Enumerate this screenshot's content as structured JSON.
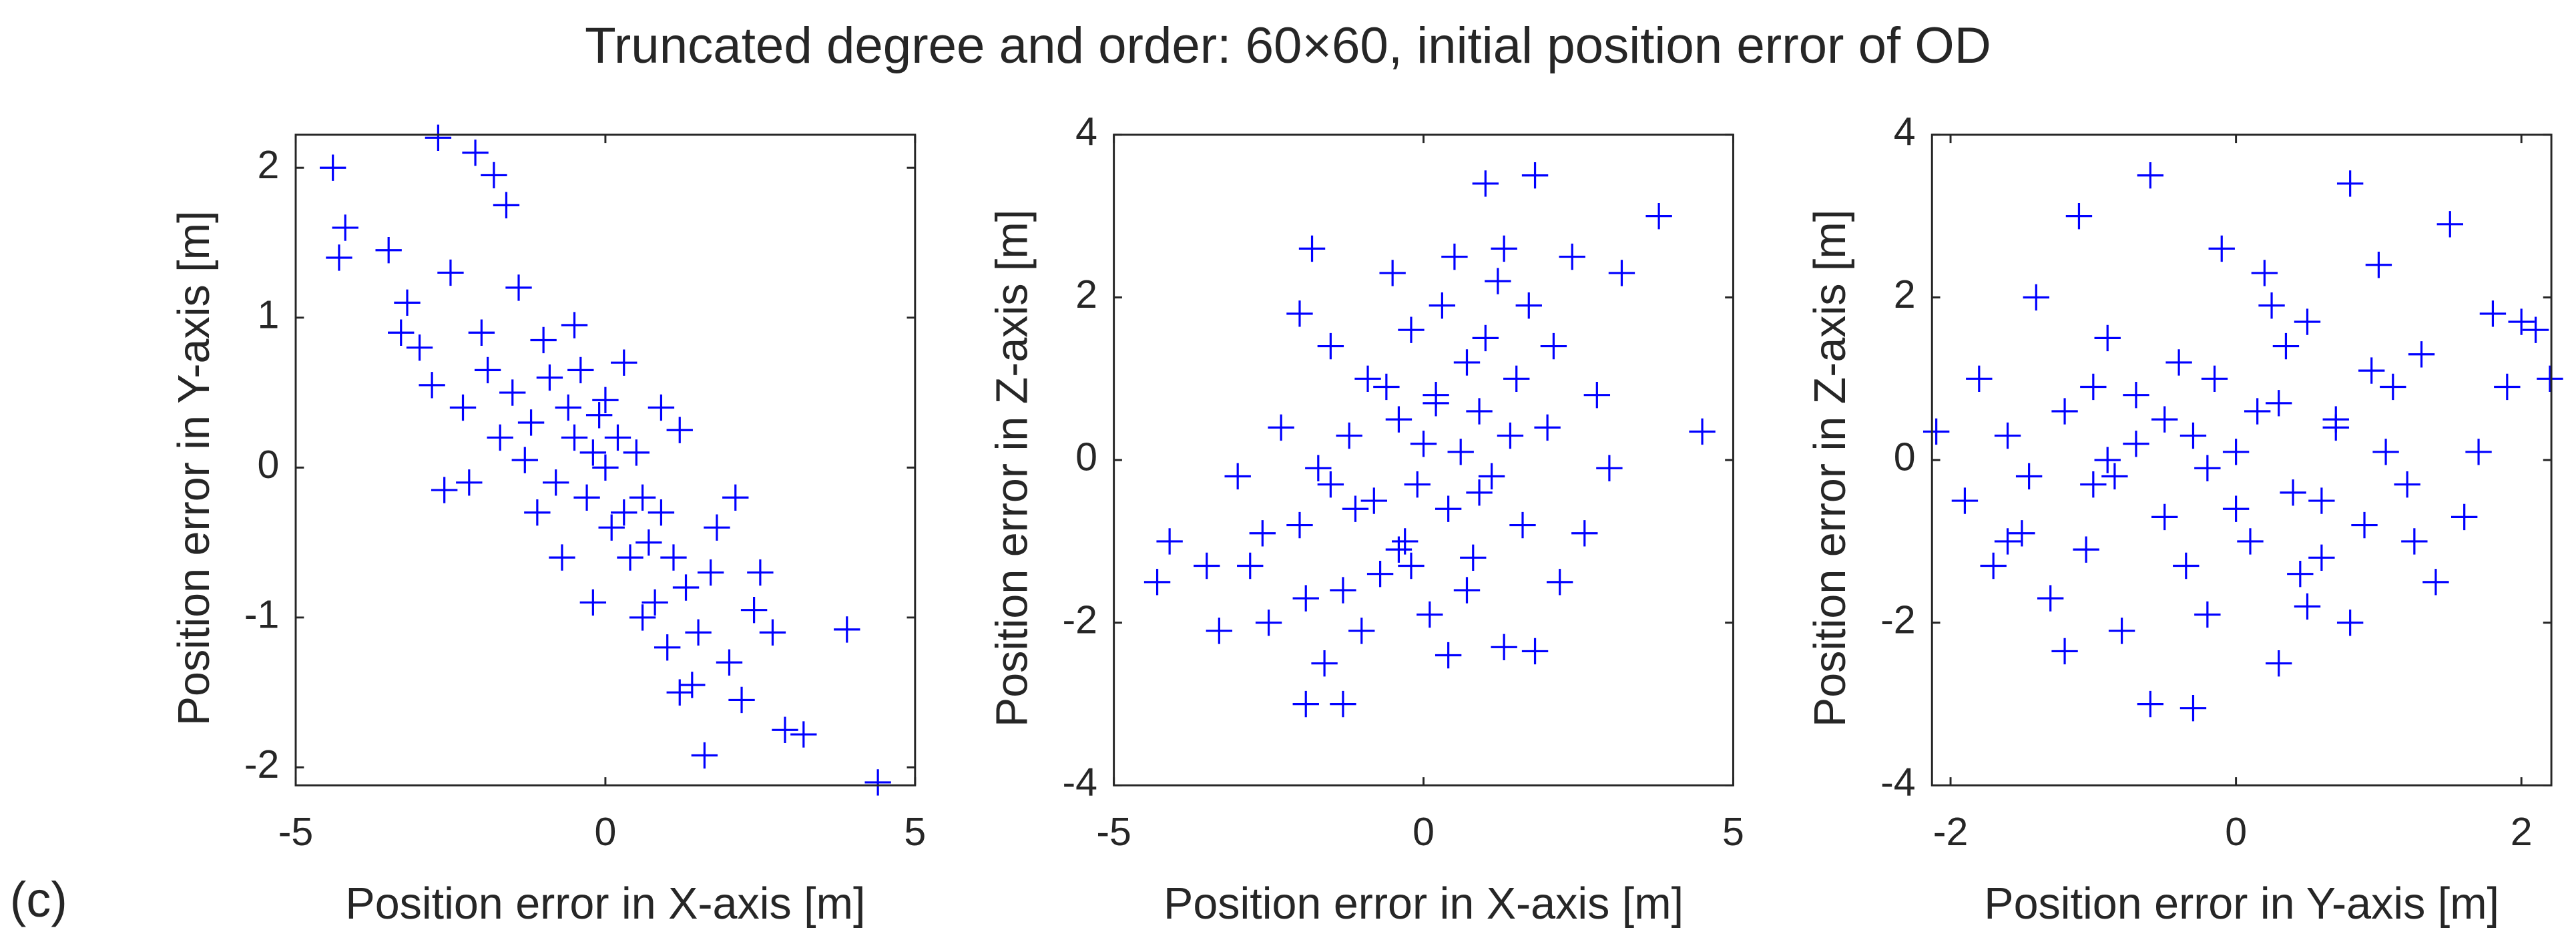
{
  "title": "Truncated degree and order: 60×60, initial position error of OD",
  "panel_label": "(c)",
  "chart_data": [
    {
      "type": "scatter",
      "color": "#0000ff",
      "marker": "+",
      "xlabel": "Position error in X-axis [m]",
      "ylabel": "Position error in Y-axis [m]",
      "xlim": [
        -5,
        5
      ],
      "ylim": [
        -2.12,
        2.22
      ],
      "xticks": [
        -5,
        0,
        5
      ],
      "yticks": [
        -2,
        -1,
        0,
        1,
        2
      ],
      "x": [
        -4.4,
        -4.3,
        -4.2,
        -2.7,
        -3.5,
        -3.2,
        -3.0,
        -2.8,
        -2.5,
        -2.3,
        -2.1,
        -2.0,
        -1.8,
        -1.6,
        -1.5,
        -1.4,
        -1.2,
        -1.0,
        -0.9,
        -0.8,
        -0.6,
        -0.5,
        -0.4,
        -0.3,
        -0.2,
        -0.1,
        0,
        0.1,
        0.2,
        0.3,
        0.4,
        0.5,
        0.6,
        0.7,
        0.8,
        0.9,
        1.0,
        1.1,
        1.2,
        1.3,
        1.5,
        1.6,
        1.8,
        2.0,
        2.2,
        2.5,
        2.7,
        2.9,
        3.2,
        3.9,
        4.4,
        -1.7,
        -2.2,
        -3.3,
        -0.7,
        0.3,
        1.4,
        -1.1,
        0.9,
        2.4,
        -2.6,
        -1.9,
        -0.2,
        0.6,
        1.7,
        -1.3,
        0.0,
        -0.5,
        1.2,
        2.1
      ],
      "values": [
        2.0,
        1.4,
        1.6,
        2.2,
        1.45,
        1.1,
        0.8,
        0.55,
        1.3,
        0.4,
        2.1,
        0.9,
        1.95,
        1.75,
        0.5,
        1.2,
        0.3,
        0.85,
        0.6,
        -0.1,
        0.4,
        0.2,
        0.65,
        -0.2,
        0.1,
        0.35,
        0.0,
        -0.4,
        0.2,
        -0.3,
        -0.6,
        0.1,
        -0.2,
        -0.5,
        -0.9,
        -0.3,
        -1.2,
        -0.6,
        -1.5,
        -0.8,
        -1.1,
        -1.92,
        -0.4,
        -1.3,
        -1.55,
        -0.7,
        -1.1,
        -1.75,
        -1.78,
        -1.08,
        -2.1,
        0.2,
        -0.1,
        0.9,
        -0.6,
        0.7,
        -1.45,
        -0.3,
        0.4,
        -0.95,
        -0.15,
        0.65,
        -0.9,
        -1.0,
        -0.7,
        0.05,
        0.45,
        0.95,
        0.25,
        -0.2
      ]
    },
    {
      "type": "scatter",
      "color": "#0000ff",
      "marker": "+",
      "xlabel": "Position error in X-axis [m]",
      "ylabel": "Position error in Z-axis [m]",
      "xlim": [
        -5,
        5
      ],
      "ylim": [
        -4,
        4
      ],
      "xticks": [
        -5,
        0,
        5
      ],
      "yticks": [
        -4,
        -2,
        0,
        2,
        4
      ],
      "x": [
        -4.3,
        -4.1,
        -3.3,
        -3.0,
        -2.8,
        -2.5,
        -2.3,
        -2.0,
        -1.9,
        -1.8,
        -1.6,
        -1.5,
        -1.3,
        -1.2,
        -1.0,
        -0.9,
        -0.8,
        -0.7,
        -0.5,
        -0.4,
        -0.3,
        -0.2,
        -0.1,
        0,
        0.1,
        0.2,
        0.3,
        0.4,
        0.5,
        0.6,
        0.7,
        0.8,
        0.9,
        1.0,
        1.1,
        1.2,
        1.3,
        1.5,
        1.6,
        1.8,
        2.0,
        2.2,
        2.4,
        2.6,
        3.0,
        3.2,
        3.8,
        4.5,
        1.8,
        1.0,
        -1.3,
        -1.9,
        -2.0,
        -1.1,
        0.4,
        -0.6,
        1.4,
        2.1,
        -2.6,
        0.7,
        -0.2,
        1.7,
        -3.5,
        -1.5,
        0.2,
        0.9,
        -0.4,
        2.8,
        -1.7,
        1.3
      ],
      "values": [
        -1.5,
        -1.0,
        -2.1,
        -0.2,
        -1.3,
        -2.0,
        0.4,
        -0.8,
        -3.0,
        2.6,
        -2.5,
        1.4,
        -3.0,
        0.3,
        -2.1,
        1.0,
        -0.5,
        -1.4,
        2.3,
        0.5,
        -1.0,
        1.6,
        -0.3,
        0.2,
        -1.9,
        0.8,
        1.9,
        -0.6,
        2.5,
        0.1,
        1.2,
        -1.2,
        0.6,
        3.4,
        -0.2,
        2.2,
        -2.3,
        1.0,
        -0.8,
        3.5,
        0.4,
        -1.5,
        2.5,
        -0.9,
        -0.1,
        2.3,
        3.0,
        0.35,
        -2.35,
        1.5,
        -1.6,
        -1.7,
        1.8,
        -0.6,
        -2.4,
        0.9,
        0.3,
        1.4,
        -0.9,
        -1.6,
        -1.3,
        1.9,
        -1.3,
        -0.3,
        0.7,
        -0.4,
        -1.1,
        0.8,
        -0.1,
        2.6
      ]
    },
    {
      "type": "scatter",
      "color": "#0000ff",
      "marker": "+",
      "xlabel": "Position error in Y-axis [m]",
      "ylabel": "Position error in Z-axis [m]",
      "xlim": [
        -2.13,
        2.21
      ],
      "ylim": [
        -4,
        4
      ],
      "xticks": [
        -2,
        0,
        2
      ],
      "yticks": [
        -4,
        -2,
        0,
        2,
        4
      ],
      "x": [
        -2.1,
        -1.9,
        -1.8,
        -1.7,
        -1.6,
        -1.5,
        -1.4,
        -1.3,
        -1.2,
        -1.2,
        -1.1,
        -1.0,
        -0.9,
        -0.8,
        -0.7,
        -0.6,
        -0.6,
        -0.5,
        -0.4,
        -0.3,
        -0.3,
        -0.2,
        -0.1,
        0,
        0.1,
        0.2,
        0.3,
        0.3,
        0.4,
        0.5,
        0.6,
        0.7,
        0.8,
        0.9,
        1.0,
        1.1,
        1.2,
        1.3,
        1.4,
        1.5,
        1.6,
        1.7,
        1.8,
        2.0,
        2.1,
        2.2,
        -1.05,
        0.8,
        -0.5,
        0.0,
        0.45,
        -0.85,
        1.05,
        -0.15,
        0.6,
        -1.45,
        0.25,
        -0.7,
        1.25,
        -0.35,
        0.15,
        0.95,
        -1.0,
        0.5,
        -0.2,
        0.7,
        -1.6,
        1.9,
        -0.9,
        0.35
      ],
      "values": [
        0.35,
        -0.5,
        1.0,
        -1.3,
        0.3,
        -0.9,
        2.0,
        -1.7,
        0.6,
        -2.35,
        3.0,
        -0.3,
        1.5,
        -2.1,
        0.8,
        3.5,
        -3.0,
        -0.7,
        1.2,
        -3.05,
        0.3,
        -1.9,
        2.6,
        0.1,
        -1.0,
        2.3,
        -2.5,
        0.7,
        -0.4,
        1.7,
        -1.2,
        0.4,
        3.4,
        -0.8,
        2.4,
        0.9,
        -0.3,
        1.3,
        -1.5,
        2.9,
        -0.7,
        0.1,
        1.8,
        1.7,
        1.6,
        1.0,
        -1.1,
        -2.0,
        0.5,
        -0.6,
        -1.4,
        -0.2,
        0.1,
        1.0,
        -0.5,
        -0.2,
        1.9,
        0.2,
        -1.0,
        -1.3,
        0.6,
        1.1,
        0.9,
        -1.8,
        -0.1,
        0.5,
        -1.0,
        0.9,
        0.0,
        1.4
      ]
    }
  ]
}
